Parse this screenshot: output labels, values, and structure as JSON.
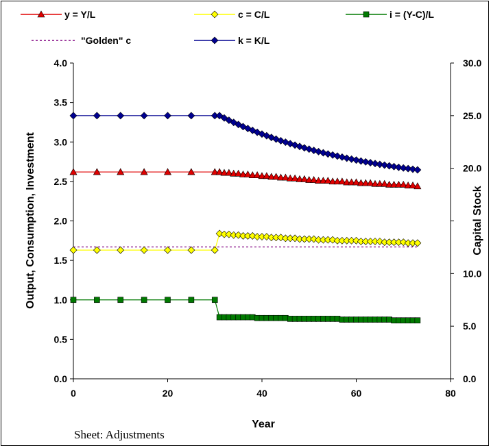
{
  "chart_data": {
    "type": "line",
    "xlabel": "Year",
    "ylabel": "Output, Consumption, Investment",
    "y2label": "Capital Stock",
    "xlim": [
      0,
      80
    ],
    "ylim": [
      0,
      4
    ],
    "y2lim": [
      0,
      30
    ],
    "xticks": [
      "0",
      "20",
      "40",
      "60",
      "80"
    ],
    "yticks": [
      "0.0",
      "0.5",
      "1.0",
      "1.5",
      "2.0",
      "2.5",
      "3.0",
      "3.5",
      "4.0"
    ],
    "y2ticks": [
      "0.0",
      "5.0",
      "10.0",
      "20.0",
      "25.0",
      "30.0"
    ],
    "legend_position": "top",
    "grid": false,
    "series": [
      {
        "name": "y = Y/L",
        "color": "#e00000",
        "marker": "triangle",
        "axis": "left",
        "x": [
          0,
          5,
          10,
          15,
          20,
          25,
          30,
          31,
          32,
          33,
          34,
          35,
          36,
          37,
          38,
          39,
          40,
          41,
          42,
          43,
          44,
          45,
          46,
          47,
          48,
          49,
          50,
          51,
          52,
          53,
          54,
          55,
          56,
          57,
          58,
          59,
          60,
          61,
          62,
          63,
          64,
          65,
          66,
          67,
          68,
          69,
          70,
          71,
          72,
          73
        ],
        "y": [
          2.62,
          2.62,
          2.62,
          2.62,
          2.62,
          2.62,
          2.62,
          2.62,
          2.61,
          2.61,
          2.6,
          2.6,
          2.59,
          2.59,
          2.58,
          2.58,
          2.57,
          2.57,
          2.56,
          2.56,
          2.55,
          2.55,
          2.54,
          2.54,
          2.53,
          2.53,
          2.52,
          2.52,
          2.51,
          2.51,
          2.51,
          2.5,
          2.5,
          2.5,
          2.49,
          2.49,
          2.49,
          2.48,
          2.48,
          2.48,
          2.47,
          2.47,
          2.47,
          2.46,
          2.46,
          2.46,
          2.46,
          2.45,
          2.45,
          2.44
        ]
      },
      {
        "name": "c = C/L",
        "color": "#ffff00",
        "marker": "diamond",
        "axis": "left",
        "x": [
          0,
          5,
          10,
          15,
          20,
          25,
          30,
          31,
          32,
          33,
          34,
          35,
          36,
          37,
          38,
          39,
          40,
          41,
          42,
          43,
          44,
          45,
          46,
          47,
          48,
          49,
          50,
          51,
          52,
          53,
          54,
          55,
          56,
          57,
          58,
          59,
          60,
          61,
          62,
          63,
          64,
          65,
          66,
          67,
          68,
          69,
          70,
          71,
          72,
          73
        ],
        "y": [
          1.63,
          1.63,
          1.63,
          1.63,
          1.63,
          1.63,
          1.63,
          1.84,
          1.83,
          1.83,
          1.82,
          1.82,
          1.81,
          1.81,
          1.81,
          1.8,
          1.8,
          1.8,
          1.79,
          1.79,
          1.79,
          1.78,
          1.78,
          1.78,
          1.77,
          1.77,
          1.77,
          1.77,
          1.76,
          1.76,
          1.76,
          1.76,
          1.75,
          1.75,
          1.75,
          1.75,
          1.75,
          1.74,
          1.74,
          1.74,
          1.74,
          1.74,
          1.73,
          1.73,
          1.73,
          1.73,
          1.73,
          1.72,
          1.72,
          1.72
        ]
      },
      {
        "name": "i = (Y-C)/L",
        "color": "#007a00",
        "marker": "square",
        "axis": "left",
        "x": [
          0,
          5,
          10,
          15,
          20,
          25,
          30,
          31,
          32,
          33,
          34,
          35,
          36,
          37,
          38,
          39,
          40,
          41,
          42,
          43,
          44,
          45,
          46,
          47,
          48,
          49,
          50,
          51,
          52,
          53,
          54,
          55,
          56,
          57,
          58,
          59,
          60,
          61,
          62,
          63,
          64,
          65,
          66,
          67,
          68,
          69,
          70,
          71,
          72,
          73
        ],
        "y": [
          1.0,
          1.0,
          1.0,
          1.0,
          1.0,
          1.0,
          1.0,
          0.78,
          0.78,
          0.78,
          0.78,
          0.78,
          0.78,
          0.78,
          0.78,
          0.77,
          0.77,
          0.77,
          0.77,
          0.77,
          0.77,
          0.77,
          0.76,
          0.76,
          0.76,
          0.76,
          0.76,
          0.76,
          0.76,
          0.76,
          0.76,
          0.76,
          0.76,
          0.75,
          0.75,
          0.75,
          0.75,
          0.75,
          0.75,
          0.75,
          0.75,
          0.75,
          0.75,
          0.75,
          0.74,
          0.74,
          0.74,
          0.74,
          0.74,
          0.74
        ]
      },
      {
        "name": "\"Golden\" c",
        "color": "#800080",
        "marker": "none",
        "dashed": true,
        "axis": "left",
        "x": [
          0,
          73
        ],
        "y": [
          1.67,
          1.67
        ]
      },
      {
        "name": "k = K/L",
        "color": "#000090",
        "marker": "diamond",
        "axis": "right",
        "x": [
          0,
          5,
          10,
          15,
          20,
          25,
          30,
          31,
          32,
          33,
          34,
          35,
          36,
          37,
          38,
          39,
          40,
          41,
          42,
          43,
          44,
          45,
          46,
          47,
          48,
          49,
          50,
          51,
          52,
          53,
          54,
          55,
          56,
          57,
          58,
          59,
          60,
          61,
          62,
          63,
          64,
          65,
          66,
          67,
          68,
          69,
          70,
          71,
          72,
          73
        ],
        "y": [
          25.0,
          25.0,
          25.0,
          25.0,
          25.0,
          25.0,
          25.0,
          25.0,
          24.78,
          24.56,
          24.36,
          24.16,
          23.96,
          23.78,
          23.6,
          23.42,
          23.25,
          23.09,
          22.93,
          22.77,
          22.62,
          22.48,
          22.34,
          22.2,
          22.07,
          21.94,
          21.82,
          21.7,
          21.58,
          21.47,
          21.36,
          21.26,
          21.16,
          21.06,
          20.96,
          20.87,
          20.78,
          20.69,
          20.61,
          20.53,
          20.45,
          20.37,
          20.3,
          20.23,
          20.16,
          20.09,
          20.03,
          19.97,
          19.91,
          19.85
        ]
      }
    ]
  },
  "footer": {
    "sheet_label": "Sheet: Adjustments"
  }
}
